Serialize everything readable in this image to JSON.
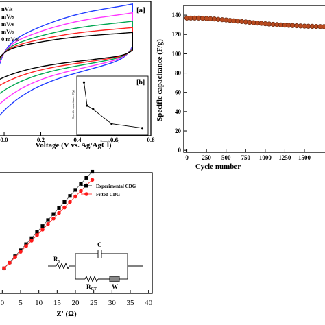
{
  "chart_data": [
    {
      "panel": "a",
      "type": "line",
      "panel_label": "[a]",
      "xlabel": "Voltage (V vs. Ag/AgCl)",
      "ylabel": "",
      "xlim": [
        -0.03,
        0.8
      ],
      "ylim": [
        -3.2,
        2.0
      ],
      "x_ticks": [
        0.0,
        0.2,
        0.4,
        0.6,
        0.8
      ],
      "x_tick_labels": [
        "0.0",
        "0.2",
        "0.4",
        "0.6",
        "0.8"
      ],
      "legend_entries": [
        "nV/s",
        "mV/s",
        "mV/s",
        "mV/s",
        "0 mV/s"
      ],
      "series": [
        {
          "color": "#1f3cff",
          "amp": 1.0
        },
        {
          "color": "#ff33ff",
          "amp": 0.82
        },
        {
          "color": "#00a651",
          "amp": 0.65
        },
        {
          "color": "#ff2020",
          "amp": 0.52
        },
        {
          "color": "#000000",
          "amp": 0.42
        }
      ],
      "inset": {
        "panel_label": "[b]",
        "type": "line",
        "xlabel": "Scan rate (mV/s)",
        "ylabel": "Specific capacitance (F/g)",
        "x": [
          5,
          10,
          20,
          50,
          100
        ],
        "y": [
          276,
          146,
          125,
          44,
          20
        ],
        "xlim": [
          0,
          105
        ],
        "ylim": [
          0,
          300
        ]
      }
    },
    {
      "panel": "stability",
      "type": "scatter",
      "xlabel": "Cycle number",
      "ylabel": "Specific capacitance (F/g)",
      "xlim": [
        -40,
        1780
      ],
      "ylim": [
        -2,
        150
      ],
      "x_ticks": [
        0,
        250,
        500,
        750,
        1000,
        1250,
        1500
      ],
      "x_tick_labels": [
        "0",
        "250",
        "500",
        "750",
        "1000",
        "1250",
        "1500"
      ],
      "y_ticks": [
        0,
        20,
        40,
        60,
        80,
        100,
        120,
        140
      ],
      "y_tick_labels": [
        "0",
        "20",
        "40",
        "60",
        "80",
        "100",
        "120",
        "140"
      ],
      "marker_color": "#b84a1f",
      "x": [
        0,
        50,
        100,
        150,
        200,
        250,
        300,
        350,
        400,
        450,
        500,
        550,
        600,
        650,
        700,
        750,
        800,
        850,
        900,
        950,
        1000,
        1050,
        1100,
        1150,
        1200,
        1250,
        1300,
        1350,
        1400,
        1450,
        1500,
        1550,
        1600,
        1650,
        1700,
        1750
      ],
      "y": [
        137,
        137,
        137,
        137,
        136.8,
        136.5,
        136.3,
        136,
        135.6,
        135.3,
        135,
        134.6,
        134.2,
        133.8,
        133.4,
        133,
        132.6,
        132.2,
        131.8,
        131.5,
        131.1,
        130.8,
        130.5,
        130.2,
        129.9,
        129.6,
        129.4,
        129.2,
        129,
        128.8,
        128.6,
        128.5,
        128.4,
        128.3,
        128.2,
        128.1
      ]
    },
    {
      "panel": "nyquist",
      "type": "scatter",
      "xlabel": "Z' (Ω)",
      "ylabel": "",
      "xlim": [
        -1,
        41
      ],
      "ylim": [
        -2,
        22
      ],
      "x_ticks": [
        0,
        5,
        10,
        15,
        20,
        25,
        30,
        35,
        40
      ],
      "x_tick_labels": [
        "0",
        "5",
        "10",
        "15",
        "20",
        "25",
        "30",
        "35",
        "40"
      ],
      "legend": [
        "Experimental CDG",
        "Fitted CDG"
      ],
      "series": [
        {
          "name": "Experimental CDG",
          "color": "#000000",
          "marker": "square",
          "x": [
            0.5,
            2,
            3.5,
            5,
            6.5,
            8,
            9.5,
            11,
            12.5,
            14,
            15.5,
            17,
            18.5,
            20,
            21.5,
            23,
            24.6
          ],
          "y": [
            3.0,
            4.2,
            5.4,
            6.6,
            7.8,
            9.0,
            10.2,
            11.4,
            12.6,
            13.8,
            15.0,
            16.2,
            17.4,
            18.6,
            19.8,
            21.0,
            22.2
          ]
        },
        {
          "name": "Fitted CDG",
          "color": "#ff1a1a",
          "marker": "circle",
          "x": [
            0.5,
            2,
            3.5,
            5,
            6.5,
            8,
            9.5,
            11,
            12.5,
            14,
            15.5,
            17,
            18.5,
            20,
            21.5,
            23,
            24.6
          ],
          "y": [
            3.0,
            4.1,
            5.2,
            6.3,
            7.4,
            8.5,
            9.6,
            10.7,
            11.8,
            12.9,
            14.0,
            15.1,
            16.2,
            17.3,
            18.4,
            19.5,
            20.6
          ]
        }
      ],
      "circuit": {
        "rs": "R",
        "rs_sub": "S",
        "c": "C",
        "rct": "R",
        "rct_sub": "CT",
        "w": "W"
      }
    }
  ]
}
